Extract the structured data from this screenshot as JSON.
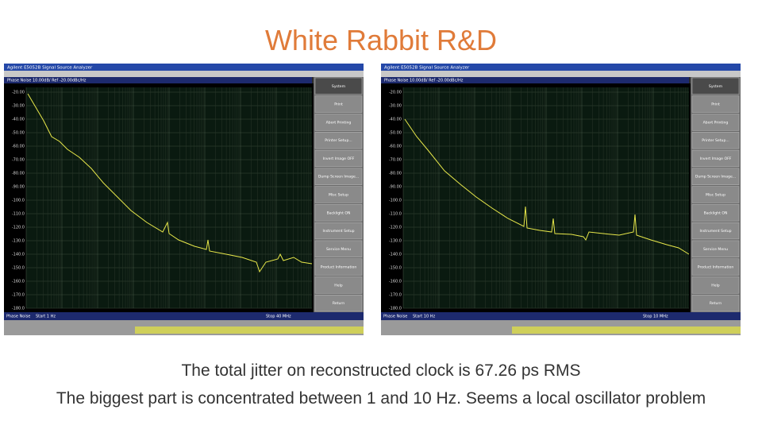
{
  "title": "White Rabbit R&D",
  "screens": [
    {
      "window_title": "Agilent E5052B Signal Source Analyzer",
      "trace_header": "Phase Noise 10.00dB/ Ref -20.00dBc/Hz",
      "y_labels": [
        "-20.00",
        "-30.00",
        "-40.00",
        "-50.00",
        "-60.00",
        "-70.00",
        "-80.00",
        "-90.00",
        "-100.0",
        "-110.0",
        "-120.0",
        "-130.0",
        "-140.0",
        "-150.0",
        "-160.0",
        "-170.0",
        "-180.0"
      ],
      "menu": [
        "System",
        "Print",
        "Abort Printing",
        "Printer Setup...",
        "Invert Image OFF",
        "Dump Screen Image...",
        "Misc Setup",
        "Backlight ON",
        "Instrument Setup",
        "Service Menu",
        "Product Information",
        "Help",
        "Return"
      ],
      "mode": "Phase Noise",
      "start": "Start 1 Hz",
      "stop": "Stop 40 MHz"
    },
    {
      "window_title": "Agilent E5052B Signal Source Analyzer",
      "trace_header": "Phase Noise 10.00dB/ Ref -20.00dBc/Hz",
      "y_labels": [
        "-20.00",
        "-30.00",
        "-40.00",
        "-50.00",
        "-60.00",
        "-70.00",
        "-80.00",
        "-90.00",
        "-100.0",
        "-110.0",
        "-120.0",
        "-130.0",
        "-140.0",
        "-150.0",
        "-160.0",
        "-170.0",
        "-180.0"
      ],
      "menu": [
        "System",
        "Print",
        "Abort Printing",
        "Printer Setup...",
        "Invert Image OFF",
        "Dump Screen Image...",
        "Misc Setup",
        "Backlight ON",
        "Instrument Setup",
        "Service Menu",
        "Product Information",
        "Help",
        "Return"
      ],
      "mode": "Phase Noise",
      "start": "Start 10 Hz",
      "stop": "Stop 10 MHz"
    }
  ],
  "captions": [
    "The total jitter on reconstructed clock is 67.26 ps RMS",
    "The biggest part is concentrated between 1 and 10 Hz. Seems a local oscillator problem"
  ]
}
